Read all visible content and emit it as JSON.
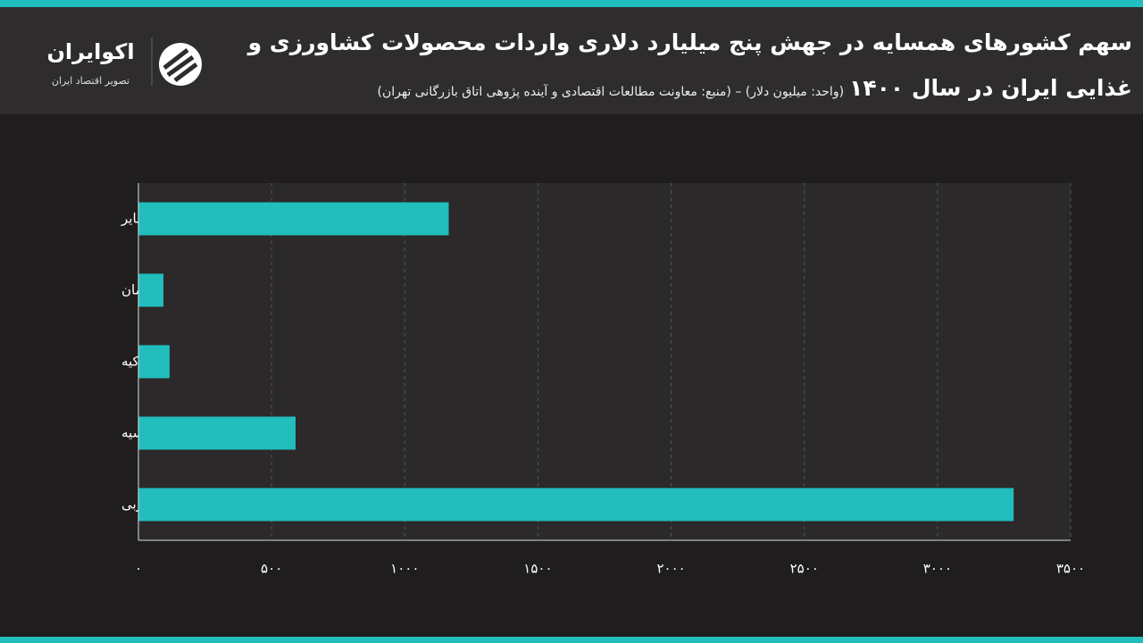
{
  "header": {
    "brand": "اکوایران",
    "tagline": "تصویر اقتصاد ایران"
  },
  "chart_data": {
    "type": "barh",
    "title": "سهم کشورهای همسایه در جهش پنج میلیارد دلاری واردات محصولات کشاورزی و غذایی ایران در سال ۱۴۰۰",
    "subtitle": "(واحد: میلیون دلار) – (منبع: معاونت مطالعات اقتصادی و آینده پژوهی اتاق بازرگانی تهران)",
    "categories": [
      "سایر",
      "عمان",
      "ترکیه",
      "روسیه",
      "امارات متحده عربی"
    ],
    "values": [
      1165,
      94,
      117,
      590,
      3286
    ],
    "color": "#22bdbd",
    "xlim": [
      0,
      3500
    ],
    "xticks": [
      {
        "value": 0,
        "label": "۰"
      },
      {
        "value": 500,
        "label": "۵۰۰"
      },
      {
        "value": 1000,
        "label": "۱۰۰۰"
      },
      {
        "value": 1500,
        "label": "۱۵۰۰"
      },
      {
        "value": 2000,
        "label": "۲۰۰۰"
      },
      {
        "value": 2500,
        "label": "۲۵۰۰"
      },
      {
        "value": 3000,
        "label": "۳۰۰۰"
      },
      {
        "value": 3500,
        "label": "۳۵۰۰"
      }
    ],
    "grid": true
  }
}
